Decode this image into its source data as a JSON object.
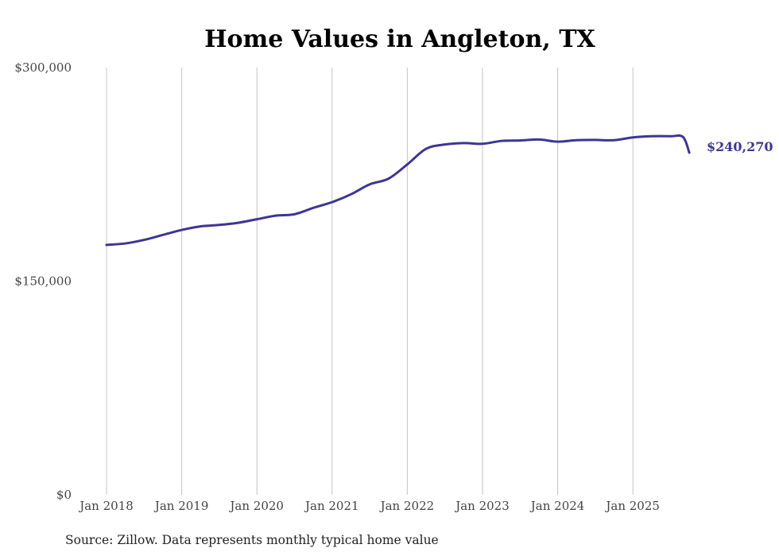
{
  "chart_data": {
    "type": "line",
    "title": "Home Values in Angleton, TX",
    "source": "Source: Zillow. Data represents monthly typical home value",
    "xlabel": "",
    "ylabel": "",
    "ylim": [
      0,
      300000
    ],
    "y_ticks": [
      {
        "value": 0,
        "label": "$0"
      },
      {
        "value": 150000,
        "label": "$150,000"
      },
      {
        "value": 300000,
        "label": "$300,000"
      }
    ],
    "x_ticks": [
      {
        "value": 2018,
        "label": "Jan 2018"
      },
      {
        "value": 2019,
        "label": "Jan 2019"
      },
      {
        "value": 2020,
        "label": "Jan 2020"
      },
      {
        "value": 2021,
        "label": "Jan 2021"
      },
      {
        "value": 2022,
        "label": "Jan 2022"
      },
      {
        "value": 2023,
        "label": "Jan 2023"
      },
      {
        "value": 2024,
        "label": "Jan 2024"
      },
      {
        "value": 2025,
        "label": "Jan 2025"
      }
    ],
    "xlim": [
      "2018-01",
      "2025-11"
    ],
    "grid": "vertical",
    "line_color": "#3b3793",
    "end_label": "$240,270",
    "series": [
      {
        "x": [
          "2018-01",
          "2018-04",
          "2018-07",
          "2018-10",
          "2019-01",
          "2019-04",
          "2019-07",
          "2019-10",
          "2020-01",
          "2020-04",
          "2020-07",
          "2020-10",
          "2021-01",
          "2021-04",
          "2021-07",
          "2021-10",
          "2022-01",
          "2022-04",
          "2022-07",
          "2022-10",
          "2023-01",
          "2023-04",
          "2023-07",
          "2023-10",
          "2024-01",
          "2024-04",
          "2024-07",
          "2024-10",
          "2025-01",
          "2025-04",
          "2025-07",
          "2025-09",
          "2025-10"
        ],
        "values": [
          175500,
          176500,
          179000,
          182500,
          186000,
          188500,
          189500,
          191000,
          193500,
          196000,
          197000,
          201500,
          205500,
          211000,
          218000,
          222000,
          232000,
          243000,
          246000,
          247000,
          246500,
          248500,
          248800,
          249500,
          248000,
          249000,
          249200,
          249000,
          251000,
          251800,
          251800,
          251300,
          240270
        ]
      }
    ]
  }
}
